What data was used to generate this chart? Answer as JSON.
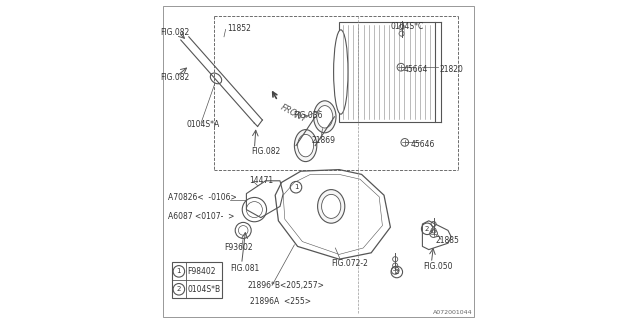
{
  "bg_color": "#ffffff",
  "line_color": "#555555",
  "text_color": "#333333",
  "legend_items": [
    {
      "num": "1",
      "text": "F98402"
    },
    {
      "num": "2",
      "text": "0104S*B"
    }
  ]
}
